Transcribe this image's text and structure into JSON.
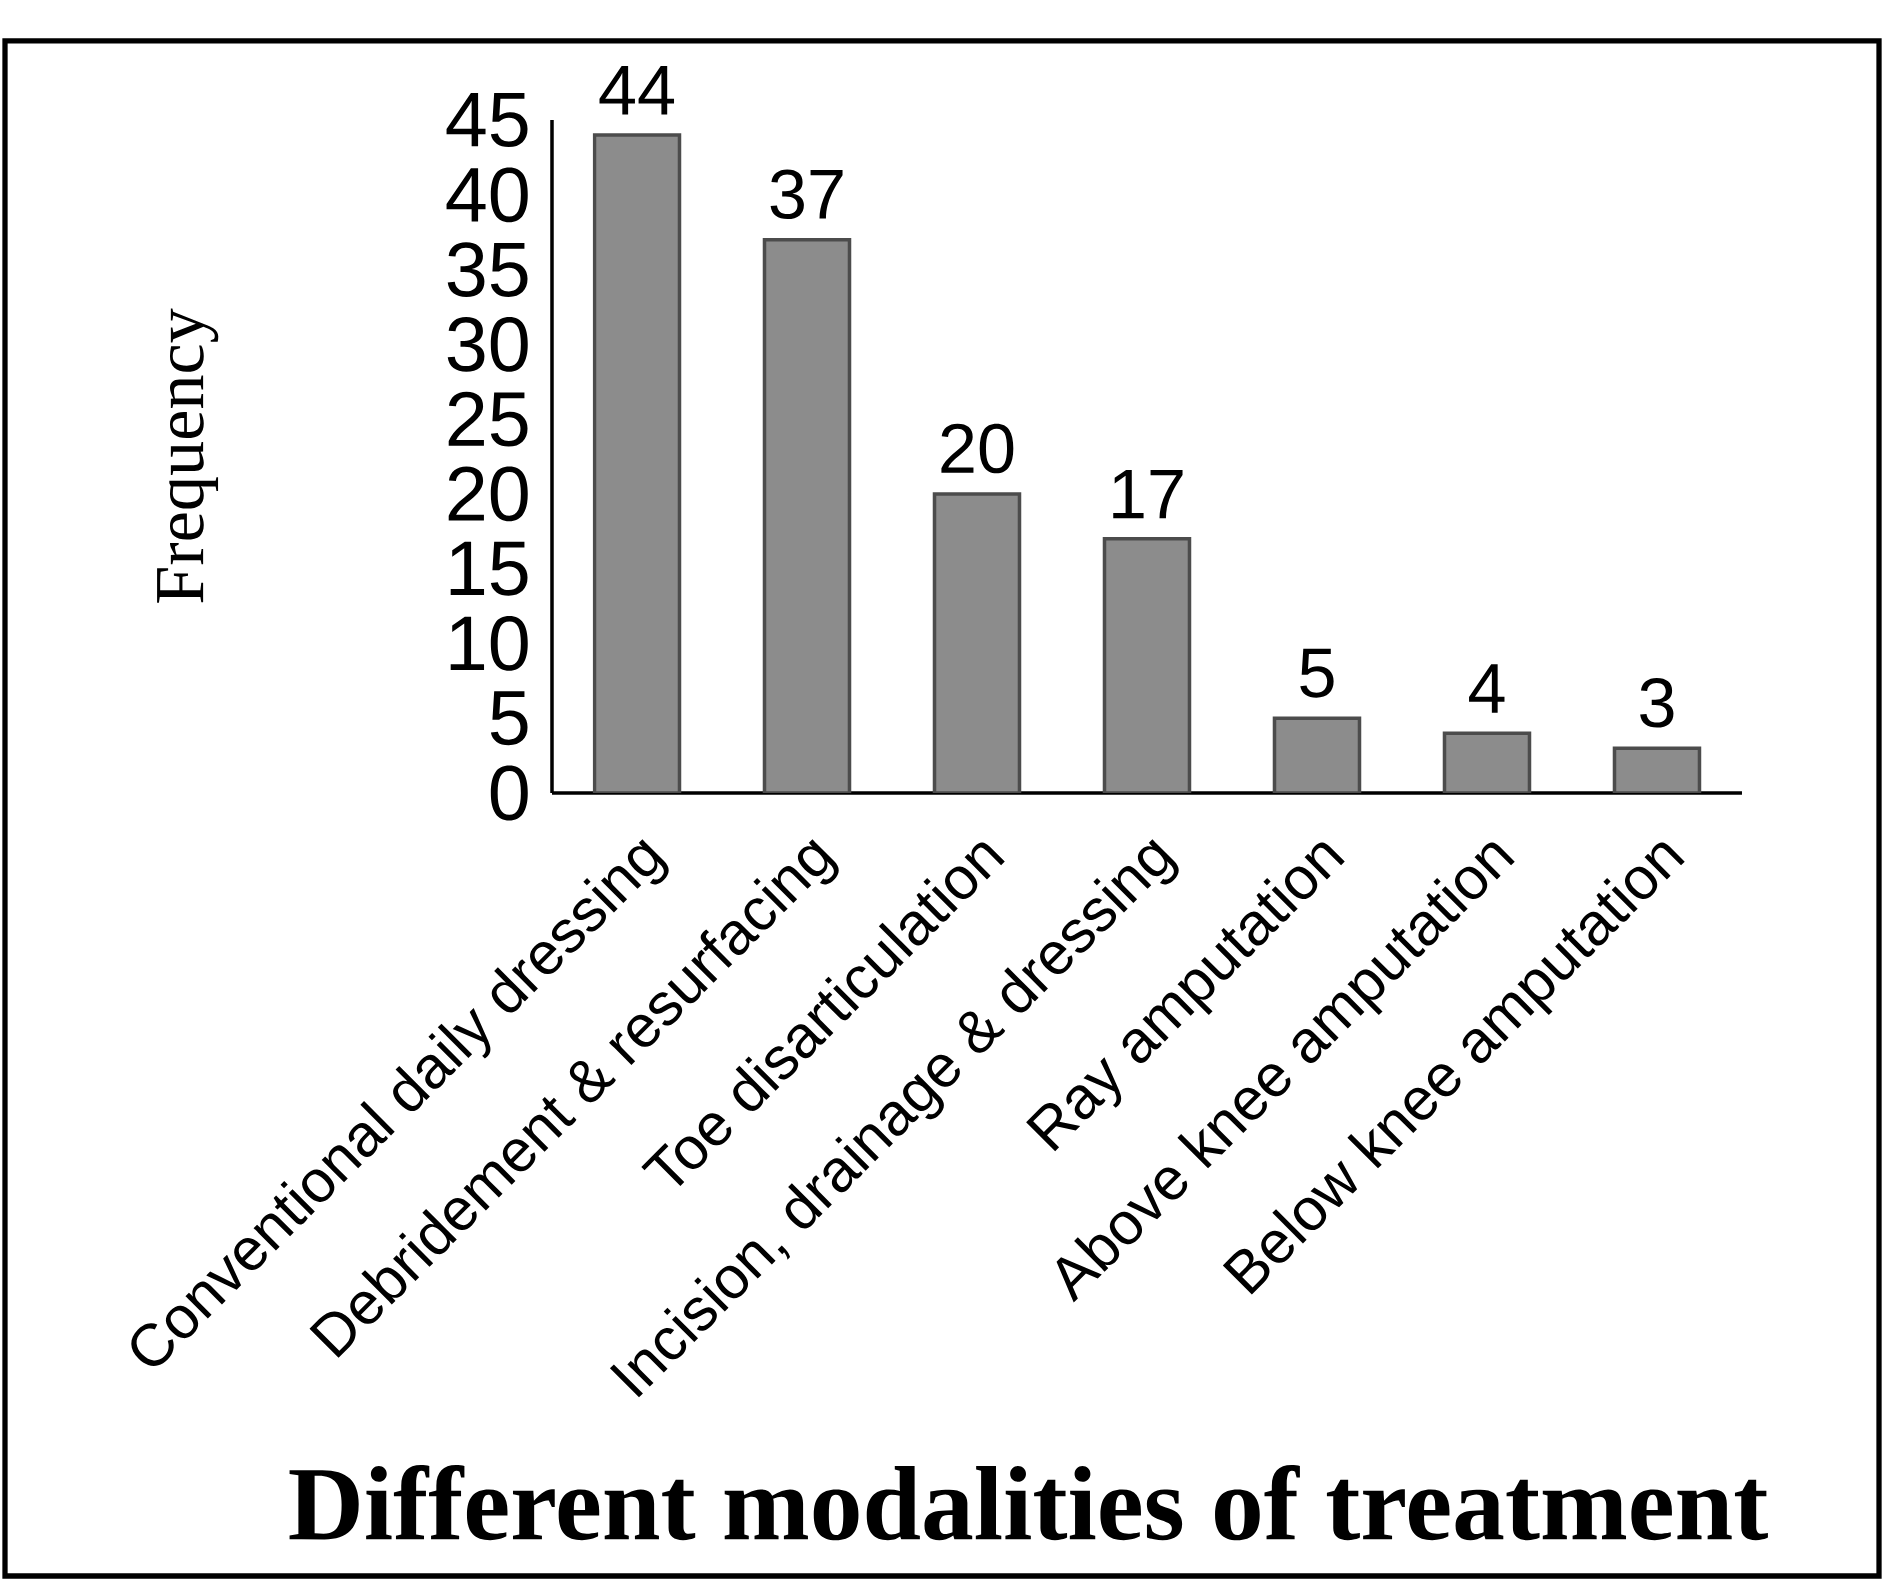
{
  "chart_data": {
    "type": "bar",
    "xlabel": "Different modalities of treatment",
    "ylabel": "Frequency",
    "categories": [
      "Conventional daily dressing",
      "Debridement & resurfacing",
      "Toe disarticulation",
      "Incision, drainage & dressing",
      "Ray amputation",
      "Above knee amputation",
      "Below knee amputation"
    ],
    "values": [
      44,
      37,
      20,
      17,
      5,
      4,
      3
    ],
    "color": "#8c8c8c",
    "ylim": [
      0,
      45
    ],
    "yticks": [
      0,
      5,
      10,
      15,
      20,
      25,
      30,
      35,
      40,
      45
    ],
    "data_labels": true
  }
}
